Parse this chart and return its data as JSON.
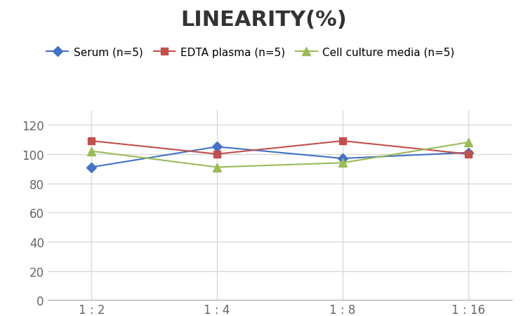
{
  "title": "LINEARITY(%)",
  "x_labels": [
    "1 : 2",
    "1 : 4",
    "1 : 8",
    "1 : 16"
  ],
  "series": [
    {
      "label": "Serum (n=5)",
      "values": [
        91,
        105,
        97,
        101
      ],
      "color": "#4472C4",
      "marker": "D",
      "markersize": 7
    },
    {
      "label": "EDTA plasma (n=5)",
      "values": [
        109,
        100,
        109,
        100
      ],
      "color": "#C0504D",
      "marker": "s",
      "markersize": 7
    },
    {
      "label": "Cell culture media (n=5)",
      "values": [
        102,
        91,
        94,
        108
      ],
      "color": "#9BBB59",
      "marker": "^",
      "markersize": 8
    }
  ],
  "ylim": [
    0,
    130
  ],
  "yticks": [
    0,
    20,
    40,
    60,
    80,
    100,
    120
  ],
  "grid_color": "#D9D9D9",
  "background_color": "#FFFFFF",
  "title_fontsize": 22,
  "title_fontweight": "bold",
  "legend_fontsize": 11,
  "tick_fontsize": 12,
  "title_color": "#333333",
  "tick_color": "#666666"
}
